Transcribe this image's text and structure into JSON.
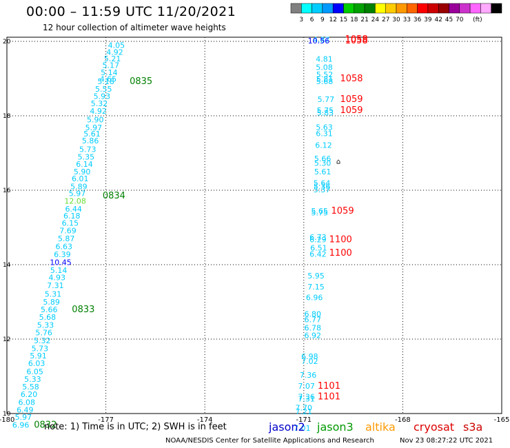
{
  "header": {
    "title": "00:00 – 11:59 UTC 11/20/2021",
    "subtitle": "12 hour collection of altimeter wave heights"
  },
  "footer": {
    "note": "note: 1) Time is in UTC; 2) SWH is in feet",
    "credit": "NOAA/NESDIS Center for Satellite Applications and Research",
    "timestamp": "Nov 23 08:27:22 UTC 2021"
  },
  "satellites": [
    {
      "name": "jason2",
      "color": "#0000cc"
    },
    {
      "name": "jason3",
      "color": "#009900"
    },
    {
      "name": "altika",
      "color": "#ff9900"
    },
    {
      "name": "cryosat",
      "color": "#dd0000"
    },
    {
      "name": "s3a",
      "color": "#cc0000"
    }
  ],
  "colorbar": {
    "unit": "(ft)",
    "colors": [
      "#808080",
      "#00ffff",
      "#00ccff",
      "#0099ff",
      "#0000ff",
      "#00cc00",
      "#00a000",
      "#008000",
      "#ffff00",
      "#ffcc00",
      "#ff9900",
      "#ff6600",
      "#ff0000",
      "#cc0000",
      "#990000",
      "#990099",
      "#cc33cc",
      "#ff66ff",
      "#ffaaff",
      "#000000"
    ],
    "labels": [
      "3",
      "6",
      "9",
      "12",
      "15",
      "18",
      "21",
      "24",
      "27",
      "30",
      "33",
      "36",
      "39",
      "42",
      "45",
      "70"
    ]
  },
  "chart_data": {
    "type": "scatter",
    "xlim": [
      -180,
      -165
    ],
    "ylim": [
      10,
      20
    ],
    "x_ticks": [
      "-180",
      "-177",
      "-174",
      "-171",
      "-168",
      "-165"
    ],
    "x_tick_values": [
      -180,
      -177,
      -174,
      -171,
      -168,
      -165
    ],
    "y_ticks": [
      "20",
      "18",
      "16",
      "14",
      "12",
      "10"
    ],
    "y_tick_values": [
      20,
      18,
      16,
      14,
      12,
      10
    ],
    "grid": true,
    "wave_heights": [
      {
        "lon": -176.68,
        "lat": 19.82,
        "label": "4.05",
        "color": "#00ccff"
      },
      {
        "lon": -176.73,
        "lat": 19.64,
        "label": "4.92",
        "color": "#00ccff"
      },
      {
        "lon": -176.8,
        "lat": 19.46,
        "label": "5.21",
        "color": "#00ccff"
      },
      {
        "lon": -176.85,
        "lat": 19.29,
        "label": "5.17",
        "color": "#00ccff"
      },
      {
        "lon": -176.9,
        "lat": 19.09,
        "label": "5.14",
        "color": "#00ccff"
      },
      {
        "lon": -176.93,
        "lat": 18.92,
        "label": "4.65",
        "color": "#00ccff"
      },
      {
        "lon": -177,
        "lat": 18.85,
        "label": "5.18",
        "color": "#00ccff"
      },
      {
        "lon": -177.07,
        "lat": 18.65,
        "label": "5.55",
        "color": "#00ccff"
      },
      {
        "lon": -177.12,
        "lat": 18.45,
        "label": "5.93",
        "color": "#00ccff"
      },
      {
        "lon": -177.2,
        "lat": 18.26,
        "label": "5.32",
        "color": "#00ccff"
      },
      {
        "lon": -177.23,
        "lat": 18.06,
        "label": "4.92",
        "color": "#00ccff"
      },
      {
        "lon": -177.32,
        "lat": 17.82,
        "label": "5.90",
        "color": "#00ccff"
      },
      {
        "lon": -177.37,
        "lat": 17.61,
        "label": "5.97",
        "color": "#00ccff"
      },
      {
        "lon": -177.42,
        "lat": 17.44,
        "label": "5.61",
        "color": "#00ccff"
      },
      {
        "lon": -177.47,
        "lat": 17.26,
        "label": "5.86",
        "color": "#00ccff"
      },
      {
        "lon": -177.55,
        "lat": 17.03,
        "label": "5.73",
        "color": "#00ccff"
      },
      {
        "lon": -177.6,
        "lat": 16.82,
        "label": "5.35",
        "color": "#00ccff"
      },
      {
        "lon": -177.65,
        "lat": 16.63,
        "label": "6.14",
        "color": "#00ccff"
      },
      {
        "lon": -177.72,
        "lat": 16.43,
        "label": "5.90",
        "color": "#00ccff"
      },
      {
        "lon": -177.78,
        "lat": 16.24,
        "label": "6.01",
        "color": "#00ccff"
      },
      {
        "lon": -177.82,
        "lat": 16.03,
        "label": "5.89",
        "color": "#00ccff"
      },
      {
        "lon": -177.87,
        "lat": 15.84,
        "label": "5.97",
        "color": "#00ccff"
      },
      {
        "lon": -177.93,
        "lat": 15.64,
        "label": "12.08",
        "color": "#66dd33"
      },
      {
        "lon": -177.98,
        "lat": 15.43,
        "label": "6.44",
        "color": "#00ccff"
      },
      {
        "lon": -178.03,
        "lat": 15.24,
        "label": "6.18",
        "color": "#00ccff"
      },
      {
        "lon": -178.08,
        "lat": 15.05,
        "label": "6.15",
        "color": "#00ccff"
      },
      {
        "lon": -178.15,
        "lat": 14.84,
        "label": "7.69",
        "color": "#00ccff"
      },
      {
        "lon": -178.2,
        "lat": 14.63,
        "label": "5.87",
        "color": "#00ccff"
      },
      {
        "lon": -178.27,
        "lat": 14.42,
        "label": "6.63",
        "color": "#00ccff"
      },
      {
        "lon": -178.32,
        "lat": 14.2,
        "label": "6.39",
        "color": "#00ccff"
      },
      {
        "lon": -178.37,
        "lat": 13.99,
        "label": "10.45",
        "color": "#0000ff"
      },
      {
        "lon": -178.43,
        "lat": 13.78,
        "label": "5.14",
        "color": "#00ccff"
      },
      {
        "lon": -178.48,
        "lat": 13.58,
        "label": "4.93",
        "color": "#00ccff"
      },
      {
        "lon": -178.53,
        "lat": 13.37,
        "label": "7.31",
        "color": "#00ccff"
      },
      {
        "lon": -178.6,
        "lat": 13.14,
        "label": "5.31",
        "color": "#00ccff"
      },
      {
        "lon": -178.65,
        "lat": 12.93,
        "label": "5.89",
        "color": "#00ccff"
      },
      {
        "lon": -178.72,
        "lat": 12.72,
        "label": "5.66",
        "color": "#00ccff"
      },
      {
        "lon": -178.77,
        "lat": 12.52,
        "label": "5.68",
        "color": "#00ccff"
      },
      {
        "lon": -178.83,
        "lat": 12.31,
        "label": "5.33",
        "color": "#00ccff"
      },
      {
        "lon": -178.88,
        "lat": 12.1,
        "label": "5.76",
        "color": "#00ccff"
      },
      {
        "lon": -178.93,
        "lat": 11.89,
        "label": "5.32",
        "color": "#00ccff"
      },
      {
        "lon": -179,
        "lat": 11.68,
        "label": "5.73",
        "color": "#00ccff"
      },
      {
        "lon": -179.05,
        "lat": 11.48,
        "label": "5.91",
        "color": "#00ccff"
      },
      {
        "lon": -179.1,
        "lat": 11.28,
        "label": "6.03",
        "color": "#00ccff"
      },
      {
        "lon": -179.15,
        "lat": 11.06,
        "label": "6.05",
        "color": "#00ccff"
      },
      {
        "lon": -179.22,
        "lat": 10.85,
        "label": "5.33",
        "color": "#00ccff"
      },
      {
        "lon": -179.28,
        "lat": 10.65,
        "label": "5.58",
        "color": "#00ccff"
      },
      {
        "lon": -179.33,
        "lat": 10.44,
        "label": "6.20",
        "color": "#00ccff"
      },
      {
        "lon": -179.4,
        "lat": 10.23,
        "label": "6.08",
        "color": "#00ccff"
      },
      {
        "lon": -179.45,
        "lat": 10.03,
        "label": "6.49",
        "color": "#00ccff"
      },
      {
        "lon": -179.5,
        "lat": 9.83,
        "label": "5.97",
        "color": "#00ccff"
      },
      {
        "lon": -179.58,
        "lat": 9.62,
        "label": "6.96",
        "color": "#00ccff"
      },
      {
        "lon": -170.47,
        "lat": 19.97,
        "label": "4.87",
        "color": "#00ccff"
      },
      {
        "lon": -170.55,
        "lat": 19.94,
        "label": "10.56",
        "color": "#0000ff"
      },
      {
        "lon": -170.38,
        "lat": 19.45,
        "label": "4.81",
        "color": "#00ccff"
      },
      {
        "lon": -170.38,
        "lat": 19.23,
        "label": "5.08",
        "color": "#00ccff"
      },
      {
        "lon": -170.37,
        "lat": 19.04,
        "label": "5.52",
        "color": "#00ccff"
      },
      {
        "lon": -170.37,
        "lat": 18.92,
        "label": "5.81",
        "color": "#00ccff"
      },
      {
        "lon": -170.37,
        "lat": 18.85,
        "label": "5.68",
        "color": "#00ccff"
      },
      {
        "lon": -170.33,
        "lat": 18.37,
        "label": "5.77",
        "color": "#00ccff"
      },
      {
        "lon": -170.35,
        "lat": 18.07,
        "label": "5.75",
        "color": "#00ccff"
      },
      {
        "lon": -170.35,
        "lat": 18.01,
        "label": "5.83",
        "color": "#00ccff"
      },
      {
        "lon": -170.38,
        "lat": 17.62,
        "label": "5.63",
        "color": "#00ccff"
      },
      {
        "lon": -170.38,
        "lat": 17.45,
        "label": "6.31",
        "color": "#00ccff"
      },
      {
        "lon": -170.4,
        "lat": 17.14,
        "label": "6.12",
        "color": "#00ccff"
      },
      {
        "lon": -170.43,
        "lat": 16.78,
        "label": "5.66",
        "color": "#00ccff"
      },
      {
        "lon": -170.43,
        "lat": 16.66,
        "label": "5.30",
        "color": "#00ccff"
      },
      {
        "lon": -170.43,
        "lat": 16.43,
        "label": "5.61",
        "color": "#00ccff"
      },
      {
        "lon": -170.45,
        "lat": 16.12,
        "label": "5.64",
        "color": "#00ccff"
      },
      {
        "lon": -170.45,
        "lat": 16.03,
        "label": "5.36",
        "color": "#00ccff"
      },
      {
        "lon": -170.45,
        "lat": 15.94,
        "label": "5.37",
        "color": "#00ccff"
      },
      {
        "lon": -170.52,
        "lat": 15.37,
        "label": "5.65",
        "color": "#00ccff"
      },
      {
        "lon": -170.52,
        "lat": 15.32,
        "label": "5.75",
        "color": "#00ccff"
      },
      {
        "lon": -170.57,
        "lat": 14.67,
        "label": "6.73",
        "color": "#00ccff"
      },
      {
        "lon": -170.57,
        "lat": 14.6,
        "label": "6.29",
        "color": "#00ccff"
      },
      {
        "lon": -170.55,
        "lat": 14.38,
        "label": "6.51",
        "color": "#00ccff"
      },
      {
        "lon": -170.57,
        "lat": 14.21,
        "label": "6.42",
        "color": "#00ccff"
      },
      {
        "lon": -170.63,
        "lat": 13.63,
        "label": "5.95",
        "color": "#00ccff"
      },
      {
        "lon": -170.63,
        "lat": 13.33,
        "label": "7.15",
        "color": "#00ccff"
      },
      {
        "lon": -170.68,
        "lat": 13.05,
        "label": "6.96",
        "color": "#00ccff"
      },
      {
        "lon": -170.73,
        "lat": 12.6,
        "label": "6.80",
        "color": "#00ccff"
      },
      {
        "lon": -170.73,
        "lat": 12.45,
        "label": "6.77",
        "color": "#00ccff"
      },
      {
        "lon": -170.73,
        "lat": 12.23,
        "label": "6.78",
        "color": "#00ccff"
      },
      {
        "lon": -170.73,
        "lat": 12.03,
        "label": "6.92",
        "color": "#00ccff"
      },
      {
        "lon": -170.82,
        "lat": 11.46,
        "label": "6.98",
        "color": "#00ccff"
      },
      {
        "lon": -170.82,
        "lat": 11.33,
        "label": "7.02",
        "color": "#00ccff"
      },
      {
        "lon": -170.87,
        "lat": 10.96,
        "label": "7.36",
        "color": "#00ccff"
      },
      {
        "lon": -170.92,
        "lat": 10.67,
        "label": "7.07",
        "color": "#00ccff"
      },
      {
        "lon": -170.92,
        "lat": 10.38,
        "label": "7.36",
        "color": "#00ccff"
      },
      {
        "lon": -170.92,
        "lat": 10.32,
        "label": "7.31",
        "color": "#00ccff"
      },
      {
        "lon": -171.0,
        "lat": 10.08,
        "label": "7.70",
        "color": "#00ccff"
      },
      {
        "lon": -171.0,
        "lat": 9.98,
        "label": "7.21",
        "color": "#00ccff"
      },
      {
        "lon": -171.05,
        "lat": 9.54,
        "label": "7.01",
        "color": "#00ccff"
      }
    ],
    "pass_times": [
      {
        "lon": -176.28,
        "lat": 18.85,
        "label": "0835",
        "color": "#008000"
      },
      {
        "lon": -177.1,
        "lat": 15.78,
        "label": "0834",
        "color": "#008000"
      },
      {
        "lon": -178.03,
        "lat": 12.72,
        "label": "0833",
        "color": "#008000"
      },
      {
        "lon": -179.18,
        "lat": 9.62,
        "label": "0832",
        "color": "#008000"
      },
      {
        "lon": -169.75,
        "lat": 19.98,
        "label": "1058",
        "color": "#ff0000"
      },
      {
        "lon": -169.75,
        "lat": 19.94,
        "label": "1058",
        "color": "#ff0000"
      },
      {
        "lon": -169.9,
        "lat": 18.93,
        "label": "1058",
        "color": "#ff0000"
      },
      {
        "lon": -169.9,
        "lat": 18.37,
        "label": "1059",
        "color": "#ff0000"
      },
      {
        "lon": -169.9,
        "lat": 18.07,
        "label": "1059",
        "color": "#ff0000"
      },
      {
        "lon": -170.17,
        "lat": 15.37,
        "label": "1059",
        "color": "#ff0000"
      },
      {
        "lon": -170.23,
        "lat": 14.6,
        "label": "1100",
        "color": "#ff0000"
      },
      {
        "lon": -170.23,
        "lat": 14.24,
        "label": "1100",
        "color": "#ff0000"
      },
      {
        "lon": -170.58,
        "lat": 10.67,
        "label": "1101",
        "color": "#ff0000"
      },
      {
        "lon": -170.58,
        "lat": 10.38,
        "label": "1101",
        "color": "#ff0000"
      }
    ],
    "markers": [
      {
        "lon": -169.95,
        "lat": 16.71,
        "label": "⌂",
        "color": "#000000"
      }
    ]
  }
}
